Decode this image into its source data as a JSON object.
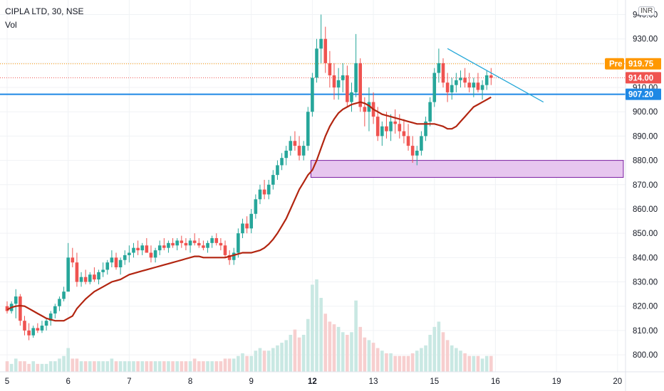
{
  "header": {
    "title": "CIPLA LTD, 30, NSE",
    "volume_label": "Vol",
    "currency": "INR"
  },
  "colors": {
    "up": "#26a69a",
    "down": "#ef5350",
    "up_volume": "#c9e8e3",
    "down_volume": "#f7cfcf",
    "moving_average": "#b22510",
    "support_line": "#1e88e5",
    "trendline": "#26a8d8",
    "zone_fill": "#e7c6ef",
    "zone_border": "#7b1fa2",
    "premarket_tag": "#ff9800",
    "last_price_tag": "#ef5350",
    "level_tag": "#1e88e5"
  },
  "chart_data": {
    "type": "candlestick",
    "title": "CIPLA LTD, 30, NSE",
    "y_axis": {
      "position": "right",
      "ylim": [
        793,
        946
      ],
      "ticks": [
        800,
        810,
        820,
        830,
        840,
        850,
        860,
        870,
        880,
        890,
        900,
        910,
        920,
        930,
        940
      ],
      "tick_labels": [
        "800.00",
        "810.00",
        "820.00",
        "830.00",
        "840.00",
        "850.00",
        "860.00",
        "870.00",
        "880.00",
        "890.00",
        "900.00",
        "910.00",
        "920.00",
        "930.00",
        "940.00"
      ]
    },
    "x_axis": {
      "tick_labels": [
        "5",
        "6",
        "7",
        "8",
        "9",
        "12",
        "13",
        "15",
        "16",
        "19",
        "20"
      ],
      "bold_tick_labels": [
        "12"
      ],
      "tick_bar_index": [
        0,
        14,
        28,
        42,
        56,
        70,
        84,
        98,
        112,
        126,
        140
      ]
    },
    "candles": {
      "fields": [
        "open",
        "high",
        "low",
        "close"
      ],
      "values": [
        [
          820,
          822,
          817,
          818
        ],
        [
          818,
          822,
          817,
          821
        ],
        [
          821,
          827,
          815,
          824
        ],
        [
          824,
          825,
          812,
          814
        ],
        [
          814,
          816,
          808,
          810
        ],
        [
          810,
          813,
          806,
          808
        ],
        [
          808,
          812,
          807,
          811
        ],
        [
          811,
          813,
          809,
          810
        ],
        [
          810,
          814,
          809,
          812
        ],
        [
          812,
          815,
          810,
          814
        ],
        [
          814,
          818,
          812,
          817
        ],
        [
          817,
          821,
          815,
          820
        ],
        [
          820,
          824,
          818,
          823
        ],
        [
          823,
          828,
          822,
          826
        ],
        [
          826,
          846,
          826,
          840
        ],
        [
          840,
          844,
          836,
          838
        ],
        [
          838,
          842,
          828,
          830
        ],
        [
          830,
          834,
          828,
          832
        ],
        [
          832,
          835,
          829,
          830
        ],
        [
          830,
          834,
          829,
          833
        ],
        [
          833,
          836,
          830,
          831
        ],
        [
          831,
          835,
          829,
          834
        ],
        [
          834,
          838,
          832,
          835
        ],
        [
          835,
          839,
          833,
          838
        ],
        [
          838,
          843,
          836,
          840
        ],
        [
          840,
          842,
          835,
          836
        ],
        [
          836,
          840,
          833,
          839
        ],
        [
          839,
          843,
          837,
          841
        ],
        [
          841,
          845,
          838,
          842
        ],
        [
          842,
          846,
          840,
          844
        ],
        [
          844,
          847,
          841,
          843
        ],
        [
          843,
          846,
          841,
          845
        ],
        [
          845,
          848,
          842,
          842
        ],
        [
          842,
          845,
          838,
          840
        ],
        [
          840,
          844,
          838,
          843
        ],
        [
          843,
          847,
          841,
          845
        ],
        [
          845,
          848,
          843,
          844
        ],
        [
          844,
          847,
          842,
          846
        ],
        [
          846,
          848,
          844,
          845
        ],
        [
          845,
          848,
          843,
          847
        ],
        [
          847,
          849,
          844,
          846
        ],
        [
          846,
          848,
          843,
          845
        ],
        [
          845,
          848,
          842,
          847
        ],
        [
          847,
          850,
          845,
          846
        ],
        [
          846,
          848,
          844,
          845
        ],
        [
          845,
          847,
          843,
          844
        ],
        [
          844,
          847,
          842,
          846
        ],
        [
          846,
          849,
          844,
          848
        ],
        [
          848,
          850,
          845,
          846
        ],
        [
          846,
          848,
          843,
          845
        ],
        [
          845,
          847,
          840,
          841
        ],
        [
          841,
          843,
          837,
          839
        ],
        [
          839,
          844,
          837,
          842
        ],
        [
          842,
          852,
          840,
          850
        ],
        [
          850,
          856,
          848,
          854
        ],
        [
          854,
          857,
          850,
          852
        ],
        [
          852,
          860,
          850,
          858
        ],
        [
          858,
          866,
          856,
          864
        ],
        [
          864,
          870,
          862,
          868
        ],
        [
          868,
          872,
          864,
          866
        ],
        [
          866,
          872,
          864,
          870
        ],
        [
          870,
          876,
          868,
          874
        ],
        [
          874,
          880,
          872,
          878
        ],
        [
          878,
          883,
          876,
          881
        ],
        [
          881,
          886,
          878,
          884
        ],
        [
          884,
          890,
          882,
          888
        ],
        [
          888,
          892,
          884,
          886
        ],
        [
          886,
          890,
          880,
          882
        ],
        [
          882,
          888,
          880,
          886
        ],
        [
          886,
          902,
          884,
          900
        ],
        [
          900,
          916,
          898,
          914
        ],
        [
          914,
          930,
          912,
          926
        ],
        [
          926,
          940,
          920,
          930
        ],
        [
          930,
          935,
          916,
          920
        ],
        [
          920,
          925,
          910,
          915
        ],
        [
          915,
          920,
          905,
          910
        ],
        [
          910,
          918,
          905,
          913
        ],
        [
          913,
          920,
          908,
          915
        ],
        [
          915,
          919,
          902,
          904
        ],
        [
          904,
          912,
          900,
          908
        ],
        [
          908,
          932,
          906,
          920
        ],
        [
          920,
          922,
          900,
          902
        ],
        [
          902,
          906,
          894,
          900
        ],
        [
          900,
          910,
          892,
          904
        ],
        [
          904,
          908,
          895,
          898
        ],
        [
          898,
          902,
          888,
          890
        ],
        [
          890,
          896,
          886,
          894
        ],
        [
          894,
          900,
          889,
          892
        ],
        [
          892,
          899,
          888,
          896
        ],
        [
          896,
          901,
          891,
          895
        ],
        [
          895,
          899,
          889,
          892
        ],
        [
          892,
          897,
          887,
          890
        ],
        [
          890,
          895,
          884,
          886
        ],
        [
          886,
          890,
          879,
          882
        ],
        [
          882,
          886,
          878,
          884
        ],
        [
          884,
          892,
          882,
          890
        ],
        [
          890,
          898,
          888,
          896
        ],
        [
          896,
          906,
          894,
          904
        ],
        [
          904,
          918,
          902,
          916
        ],
        [
          916,
          926,
          912,
          920
        ],
        [
          920,
          922,
          910,
          912
        ],
        [
          912,
          916,
          904,
          908
        ],
        [
          908,
          914,
          905,
          911
        ],
        [
          911,
          916,
          908,
          913
        ],
        [
          913,
          917,
          910,
          914
        ],
        [
          914,
          918,
          910,
          912
        ],
        [
          912,
          916,
          908,
          910
        ],
        [
          910,
          914,
          906,
          912
        ],
        [
          912,
          916,
          908,
          909
        ],
        [
          909,
          913,
          905,
          911
        ],
        [
          911,
          917,
          909,
          915
        ],
        [
          915,
          918,
          911,
          914
        ]
      ]
    },
    "volume": [
      4,
      3,
      5,
      4,
      4,
      3,
      4,
      3,
      3,
      3,
      4,
      4,
      5,
      6,
      9,
      5,
      5,
      4,
      4,
      4,
      4,
      4,
      4,
      4,
      5,
      4,
      4,
      4,
      4,
      4,
      4,
      4,
      4,
      4,
      4,
      4,
      4,
      4,
      4,
      4,
      4,
      4,
      4,
      5,
      4,
      4,
      4,
      4,
      4,
      4,
      5,
      5,
      5,
      6,
      7,
      6,
      6,
      8,
      9,
      8,
      8,
      9,
      10,
      11,
      12,
      14,
      16,
      13,
      14,
      20,
      33,
      35,
      28,
      22,
      19,
      18,
      17,
      15,
      14,
      15,
      27,
      17,
      13,
      12,
      11,
      9,
      8,
      7,
      7,
      6,
      6,
      6,
      6,
      7,
      8,
      9,
      10,
      14,
      17,
      19,
      15,
      12,
      10,
      9,
      8,
      7,
      6,
      6,
      6,
      5,
      6,
      6
    ],
    "moving_average": [
      818.5,
      819.5,
      820.0,
      820.2,
      820.0,
      819.0,
      818.0,
      817.0,
      816.0,
      815.0,
      814.5,
      814.0,
      814.0,
      814.0,
      815.0,
      816.0,
      819.0,
      821.0,
      823.0,
      824.5,
      826.0,
      827.0,
      828.0,
      829.0,
      830.0,
      830.5,
      831.0,
      832.0,
      833.0,
      833.5,
      834.0,
      834.5,
      835.0,
      835.5,
      836.0,
      836.5,
      837.0,
      837.5,
      838.0,
      838.5,
      839.0,
      839.5,
      840.0,
      840.5,
      840.5,
      840.0,
      840.0,
      840.0,
      840.0,
      840.0,
      840.0,
      840.5,
      841.0,
      841.5,
      842.0,
      842.0,
      842.0,
      842.5,
      843.0,
      844.0,
      845.5,
      847.5,
      850.0,
      853.0,
      856.0,
      860.0,
      864.0,
      868.0,
      871.0,
      874.0,
      876.0,
      880.0,
      885.0,
      890.0,
      894.0,
      897.0,
      899.5,
      901.0,
      902.0,
      903.0,
      903.5,
      904.0,
      903.5,
      902.5,
      901.0,
      900.0,
      899.0,
      898.5,
      898.0,
      897.5,
      897.0,
      896.5,
      896.0,
      895.5,
      895.0,
      895.0,
      895.0,
      895.0,
      895.0,
      894.5,
      894.0,
      893.0,
      893.0,
      894.0,
      896.0,
      898.0,
      900.0,
      902.0,
      903.0,
      904.0,
      905.0,
      906.0
    ],
    "levels": {
      "premarket": 919.75,
      "last_price": 914.0,
      "support": 907.2
    },
    "price_tags": [
      "919.75",
      "914.00",
      "907.20"
    ],
    "premarket_label": "Pre",
    "trendline": {
      "start": [
        101,
        926
      ],
      "end": [
        123,
        904
      ]
    },
    "zone": {
      "start_bar": 70,
      "end_bar": 141,
      "low": 873,
      "high": 880
    }
  }
}
